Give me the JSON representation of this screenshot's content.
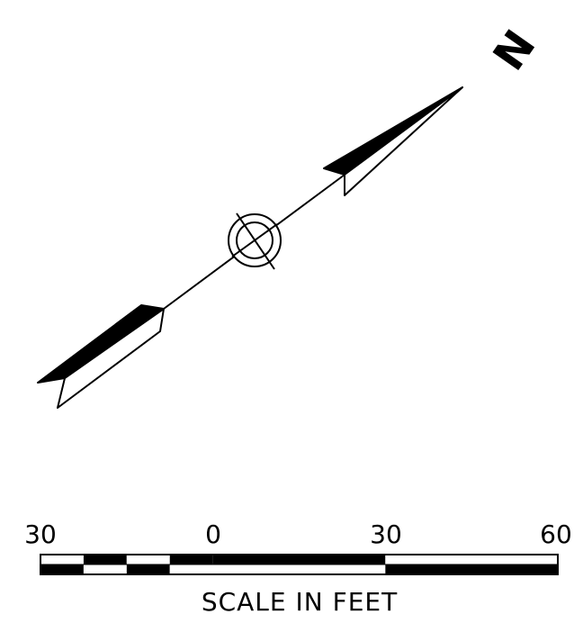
{
  "north_arrow": {
    "letter": "N",
    "icon": "north-arrow-icon",
    "center_symbol": "circle-crosshair-icon"
  },
  "scale_bar": {
    "labels": [
      "30",
      "0",
      "30",
      "60"
    ],
    "units_caption": "SCALE IN FEET",
    "ticks_ft": [
      -30,
      0,
      30,
      60
    ],
    "segments": [
      {
        "from": -30,
        "to": -22.5,
        "top": "white",
        "bottom": "black"
      },
      {
        "from": -22.5,
        "to": -15,
        "top": "black",
        "bottom": "white"
      },
      {
        "from": -15,
        "to": -7.5,
        "top": "white",
        "bottom": "black"
      },
      {
        "from": -7.5,
        "to": 0,
        "top": "black",
        "bottom": "white"
      },
      {
        "from": 0,
        "to": 30,
        "top": "black",
        "bottom": "white"
      },
      {
        "from": 30,
        "to": 60,
        "top": "white",
        "bottom": "black"
      }
    ]
  },
  "colors": {
    "ink": "#000000",
    "paper": "#ffffff"
  }
}
